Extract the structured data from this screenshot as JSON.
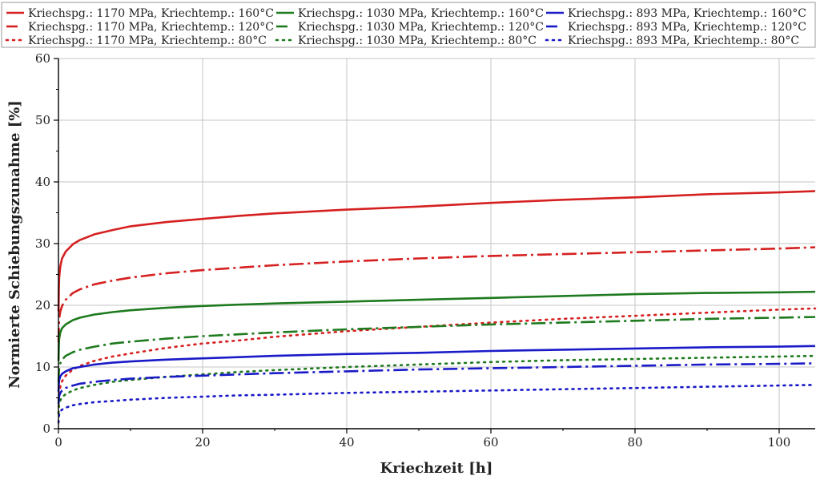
{
  "chart_data": {
    "type": "line",
    "xlabel": "Kriechzeit [h]",
    "ylabel": "Normierte Schiebungszunahme [%]",
    "xlim": [
      0,
      105
    ],
    "ylim": [
      0,
      60
    ],
    "xticks": [
      0,
      20,
      40,
      60,
      80,
      100
    ],
    "yticks": [
      0,
      10,
      20,
      30,
      40,
      50,
      60
    ],
    "grid": true,
    "legend_position": "top",
    "x": [
      0.01,
      0.05,
      0.1,
      0.25,
      0.5,
      1,
      2,
      3,
      5,
      7.5,
      10,
      15,
      20,
      25,
      30,
      40,
      50,
      60,
      70,
      80,
      90,
      100,
      105
    ],
    "series": [
      {
        "name": "Kriechspg.: 1170 MPa, Kriechtemp.: 160°C",
        "color": "#d62020",
        "style": "solid",
        "values": [
          19.0,
          22.8,
          24.5,
          26.3,
          27.6,
          28.7,
          29.9,
          30.6,
          31.5,
          32.2,
          32.8,
          33.5,
          34.0,
          34.5,
          34.9,
          35.5,
          36.0,
          36.6,
          37.1,
          37.5,
          38.0,
          38.3,
          38.5
        ]
      },
      {
        "name": "Kriechspg.: 1170 MPa, Kriechtemp.: 120°C",
        "color": "#d62020",
        "style": "dashdot",
        "values": [
          14.0,
          16.5,
          17.8,
          19.0,
          19.9,
          20.9,
          22.0,
          22.6,
          23.4,
          24.0,
          24.5,
          25.2,
          25.7,
          26.1,
          26.5,
          27.1,
          27.6,
          28.0,
          28.3,
          28.6,
          28.9,
          29.2,
          29.4
        ]
      },
      {
        "name": "Kriechspg.: 1170 MPa, Kriechtemp.: 80°C",
        "color": "#d62020",
        "style": "dotted",
        "values": [
          2.5,
          4.5,
          5.6,
          6.8,
          7.7,
          8.6,
          9.6,
          10.2,
          11.0,
          11.7,
          12.2,
          13.1,
          13.8,
          14.3,
          14.9,
          15.8,
          16.5,
          17.2,
          17.8,
          18.3,
          18.8,
          19.3,
          19.5
        ]
      },
      {
        "name": "Kriechspg.: 1030 MPa, Kriechtemp.: 160°C",
        "color": "#1e7a1e",
        "style": "solid",
        "values": [
          11.0,
          13.5,
          14.6,
          15.6,
          16.3,
          16.9,
          17.6,
          18.0,
          18.5,
          18.9,
          19.2,
          19.6,
          19.9,
          20.1,
          20.3,
          20.6,
          20.9,
          21.2,
          21.5,
          21.8,
          22.0,
          22.1,
          22.2
        ]
      },
      {
        "name": "Kriechspg.: 1030 MPa, Kriechtemp.: 120°C",
        "color": "#1e7a1e",
        "style": "dashdot",
        "values": [
          7.5,
          9.0,
          9.8,
          10.6,
          11.2,
          11.8,
          12.4,
          12.8,
          13.3,
          13.8,
          14.1,
          14.6,
          15.0,
          15.3,
          15.6,
          16.1,
          16.5,
          16.9,
          17.2,
          17.5,
          17.8,
          18.0,
          18.1
        ]
      },
      {
        "name": "Kriechspg.: 1030 MPa, Kriechtemp.: 80°C",
        "color": "#1e7a1e",
        "style": "dotted",
        "values": [
          2.5,
          3.5,
          4.0,
          4.6,
          5.1,
          5.6,
          6.2,
          6.6,
          7.1,
          7.6,
          7.9,
          8.4,
          8.8,
          9.2,
          9.5,
          10.0,
          10.4,
          10.8,
          11.1,
          11.3,
          11.5,
          11.7,
          11.8
        ]
      },
      {
        "name": "Kriechspg.: 893 MPa, Kriechtemp.: 160°C",
        "color": "#1a1ac8",
        "style": "solid",
        "values": [
          6.0,
          7.3,
          7.9,
          8.5,
          8.9,
          9.3,
          9.8,
          10.0,
          10.4,
          10.7,
          10.9,
          11.2,
          11.4,
          11.6,
          11.8,
          12.1,
          12.3,
          12.6,
          12.8,
          13.0,
          13.2,
          13.3,
          13.4
        ]
      },
      {
        "name": "Kriechspg.: 893 MPa, Kriechtemp.: 120°C",
        "color": "#1a1ac8",
        "style": "dashdot",
        "values": [
          4.0,
          4.8,
          5.3,
          5.8,
          6.2,
          6.6,
          7.0,
          7.3,
          7.6,
          7.9,
          8.1,
          8.4,
          8.6,
          8.8,
          9.0,
          9.3,
          9.6,
          9.8,
          10.0,
          10.2,
          10.4,
          10.5,
          10.6
        ]
      },
      {
        "name": "Kriechspg.: 893 MPa, Kriechtemp.: 80°C",
        "color": "#1a1ac8",
        "style": "dotted",
        "values": [
          1.0,
          1.9,
          2.3,
          2.8,
          3.1,
          3.4,
          3.8,
          4.0,
          4.3,
          4.5,
          4.7,
          5.0,
          5.2,
          5.4,
          5.5,
          5.8,
          6.0,
          6.2,
          6.4,
          6.6,
          6.8,
          7.0,
          7.1
        ]
      }
    ]
  }
}
